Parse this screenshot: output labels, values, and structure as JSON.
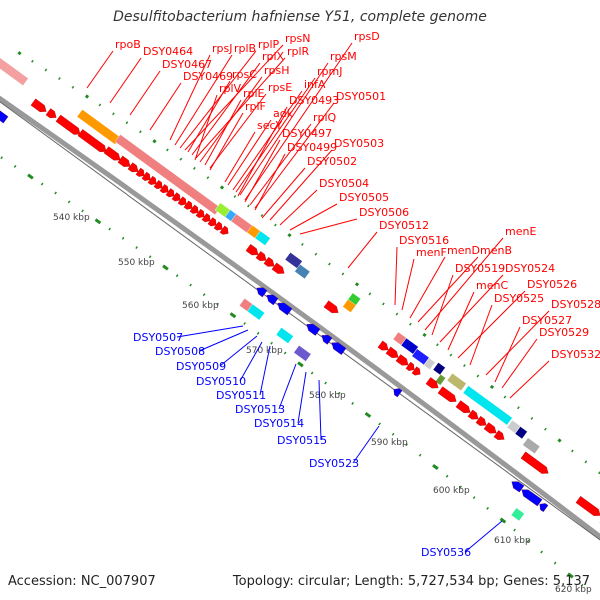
{
  "title": "Desulfitobacterium hafniense Y51, complete genome",
  "footer": {
    "accession": "Accession: NC_007907",
    "topology": "Topology: circular; Length: 5,727,534 bp; Genes: 5,137"
  },
  "colors": {
    "forward": "#ff0000",
    "reverse": "#0000ff",
    "backbone": "#888888",
    "ticks": "#228B22"
  },
  "kbp_labels": [
    "540 kbp",
    "550 kbp",
    "560 kbp",
    "570 kbp",
    "580 kbp",
    "590 kbp",
    "600 kbp",
    "610 kbp",
    "620 kbp"
  ],
  "forward_genes": [
    "rpoB",
    "DSY0464",
    "DSY0467",
    "DSY0469",
    "rpsJ",
    "rplB",
    "rplP",
    "rpsN",
    "rpsC",
    "rplX",
    "rplR",
    "rpsH",
    "rplV",
    "rplE",
    "rpsE",
    "rplF",
    "infA",
    "rpmJ",
    "rpsM",
    "rpsD",
    "adk",
    "DSY0493",
    "DSY0501",
    "secY",
    "rplQ",
    "DSY0497",
    "DSY0499",
    "DSY0503",
    "DSY0502",
    "DSY0504",
    "DSY0505",
    "DSY0506",
    "DSY0512",
    "DSY0516",
    "menF",
    "menD",
    "menB",
    "menE",
    "DSY0519",
    "DSY0524",
    "menC",
    "DSY0526",
    "DSY0525",
    "DSY0528",
    "DSY0527",
    "DSY0529",
    "DSY0532"
  ],
  "reverse_genes": [
    "DSY0507",
    "DSY0508",
    "DSY0509",
    "DSY0510",
    "DSY0511",
    "DSY0513",
    "DSY0514",
    "DSY0515",
    "DSY0523",
    "DSY0536"
  ]
}
